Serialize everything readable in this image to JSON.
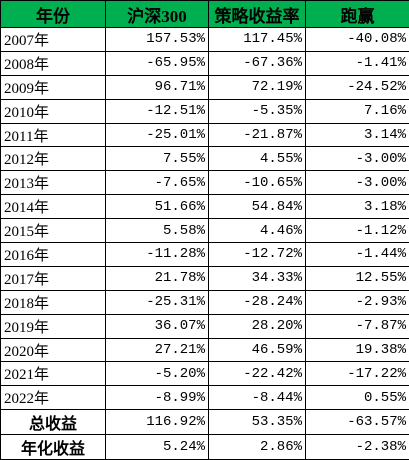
{
  "table": {
    "header": [
      "年份",
      "沪深300",
      "策略收益率",
      "跑赢"
    ],
    "rows": [
      [
        "2007年",
        "157.53%",
        "117.45%",
        "-40.08%"
      ],
      [
        "2008年",
        "-65.95%",
        "-67.36%",
        "-1.41%"
      ],
      [
        "2009年",
        "96.71%",
        "72.19%",
        "-24.52%"
      ],
      [
        "2010年",
        "-12.51%",
        "-5.35%",
        "7.16%"
      ],
      [
        "2011年",
        "-25.01%",
        "-21.87%",
        "3.14%"
      ],
      [
        "2012年",
        "7.55%",
        "4.55%",
        "-3.00%"
      ],
      [
        "2013年",
        "-7.65%",
        "-10.65%",
        "-3.00%"
      ],
      [
        "2014年",
        "51.66%",
        "54.84%",
        "3.18%"
      ],
      [
        "2015年",
        "5.58%",
        "4.46%",
        "-1.12%"
      ],
      [
        "2016年",
        "-11.28%",
        "-12.72%",
        "-1.44%"
      ],
      [
        "2017年",
        "21.78%",
        "34.33%",
        "12.55%"
      ],
      [
        "2018年",
        "-25.31%",
        "-28.24%",
        "-2.93%"
      ],
      [
        "2019年",
        "36.07%",
        "28.20%",
        "-7.87%"
      ],
      [
        "2020年",
        "27.21%",
        "46.59%",
        "19.38%"
      ],
      [
        "2021年",
        "-5.20%",
        "-22.42%",
        "-17.22%"
      ],
      [
        "2022年",
        "-8.99%",
        "-8.44%",
        "0.55%"
      ]
    ],
    "summary": [
      [
        "总收益",
        "116.92%",
        "53.35%",
        "-63.57%"
      ],
      [
        "年化收益",
        "5.24%",
        "2.86%",
        "-2.38%"
      ]
    ]
  }
}
